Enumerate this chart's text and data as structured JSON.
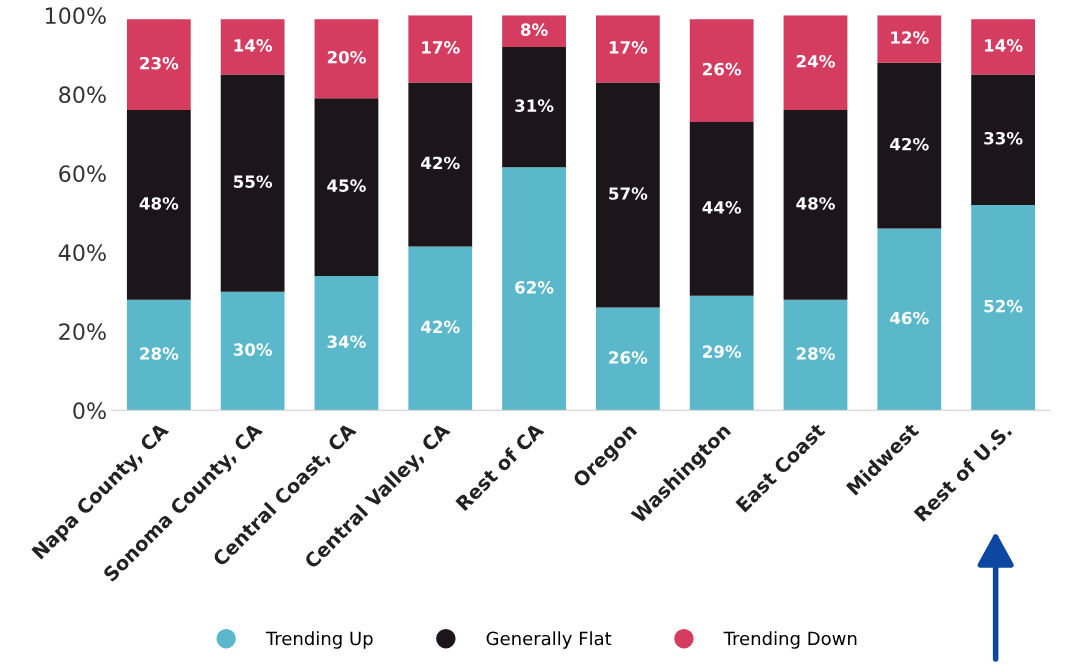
{
  "chart_data": {
    "type": "bar",
    "stacked": true,
    "categories": [
      "Napa County, CA",
      "Sonoma County, CA",
      "Central Coast, CA",
      "Central Valley, CA",
      "Rest of CA",
      "Oregon",
      "Washington",
      "East Coast",
      "Midwest",
      "Rest of U.S."
    ],
    "series": [
      {
        "name": "Trending Up",
        "color": "#5bb8cb",
        "values": [
          28,
          30,
          34,
          41.5,
          61.5,
          26,
          29,
          28,
          46,
          52
        ],
        "value_labels": [
          "28%",
          "30%",
          "34%",
          "42%",
          "62%",
          "26%",
          "29%",
          "28%",
          "46%",
          "52%"
        ]
      },
      {
        "name": "Generally Flat",
        "color": "#1c1519",
        "values": [
          48,
          55,
          45,
          41.5,
          30.5,
          57,
          44,
          48,
          42,
          33
        ],
        "value_labels": [
          "48%",
          "55%",
          "45%",
          "42%",
          "31%",
          "57%",
          "44%",
          "48%",
          "42%",
          "33%"
        ]
      },
      {
        "name": "Trending Down",
        "color": "#d43d5f",
        "values": [
          23,
          14,
          20,
          17,
          8,
          17,
          26,
          24,
          12,
          14
        ],
        "value_labels": [
          "23%",
          "14%",
          "20%",
          "17%",
          "8%",
          "17%",
          "26%",
          "24%",
          "12%",
          "14%"
        ]
      }
    ],
    "ylim": [
      0,
      100
    ],
    "yticks": [
      {
        "value": 0,
        "label": "0%"
      },
      {
        "value": 20,
        "label": "20%"
      },
      {
        "value": 40,
        "label": "40%"
      },
      {
        "value": 60,
        "label": "60%"
      },
      {
        "value": 80,
        "label": "80%"
      },
      {
        "value": 100,
        "label": "100%"
      }
    ],
    "grid": false,
    "legend": "bottom",
    "marker": "circle"
  }
}
